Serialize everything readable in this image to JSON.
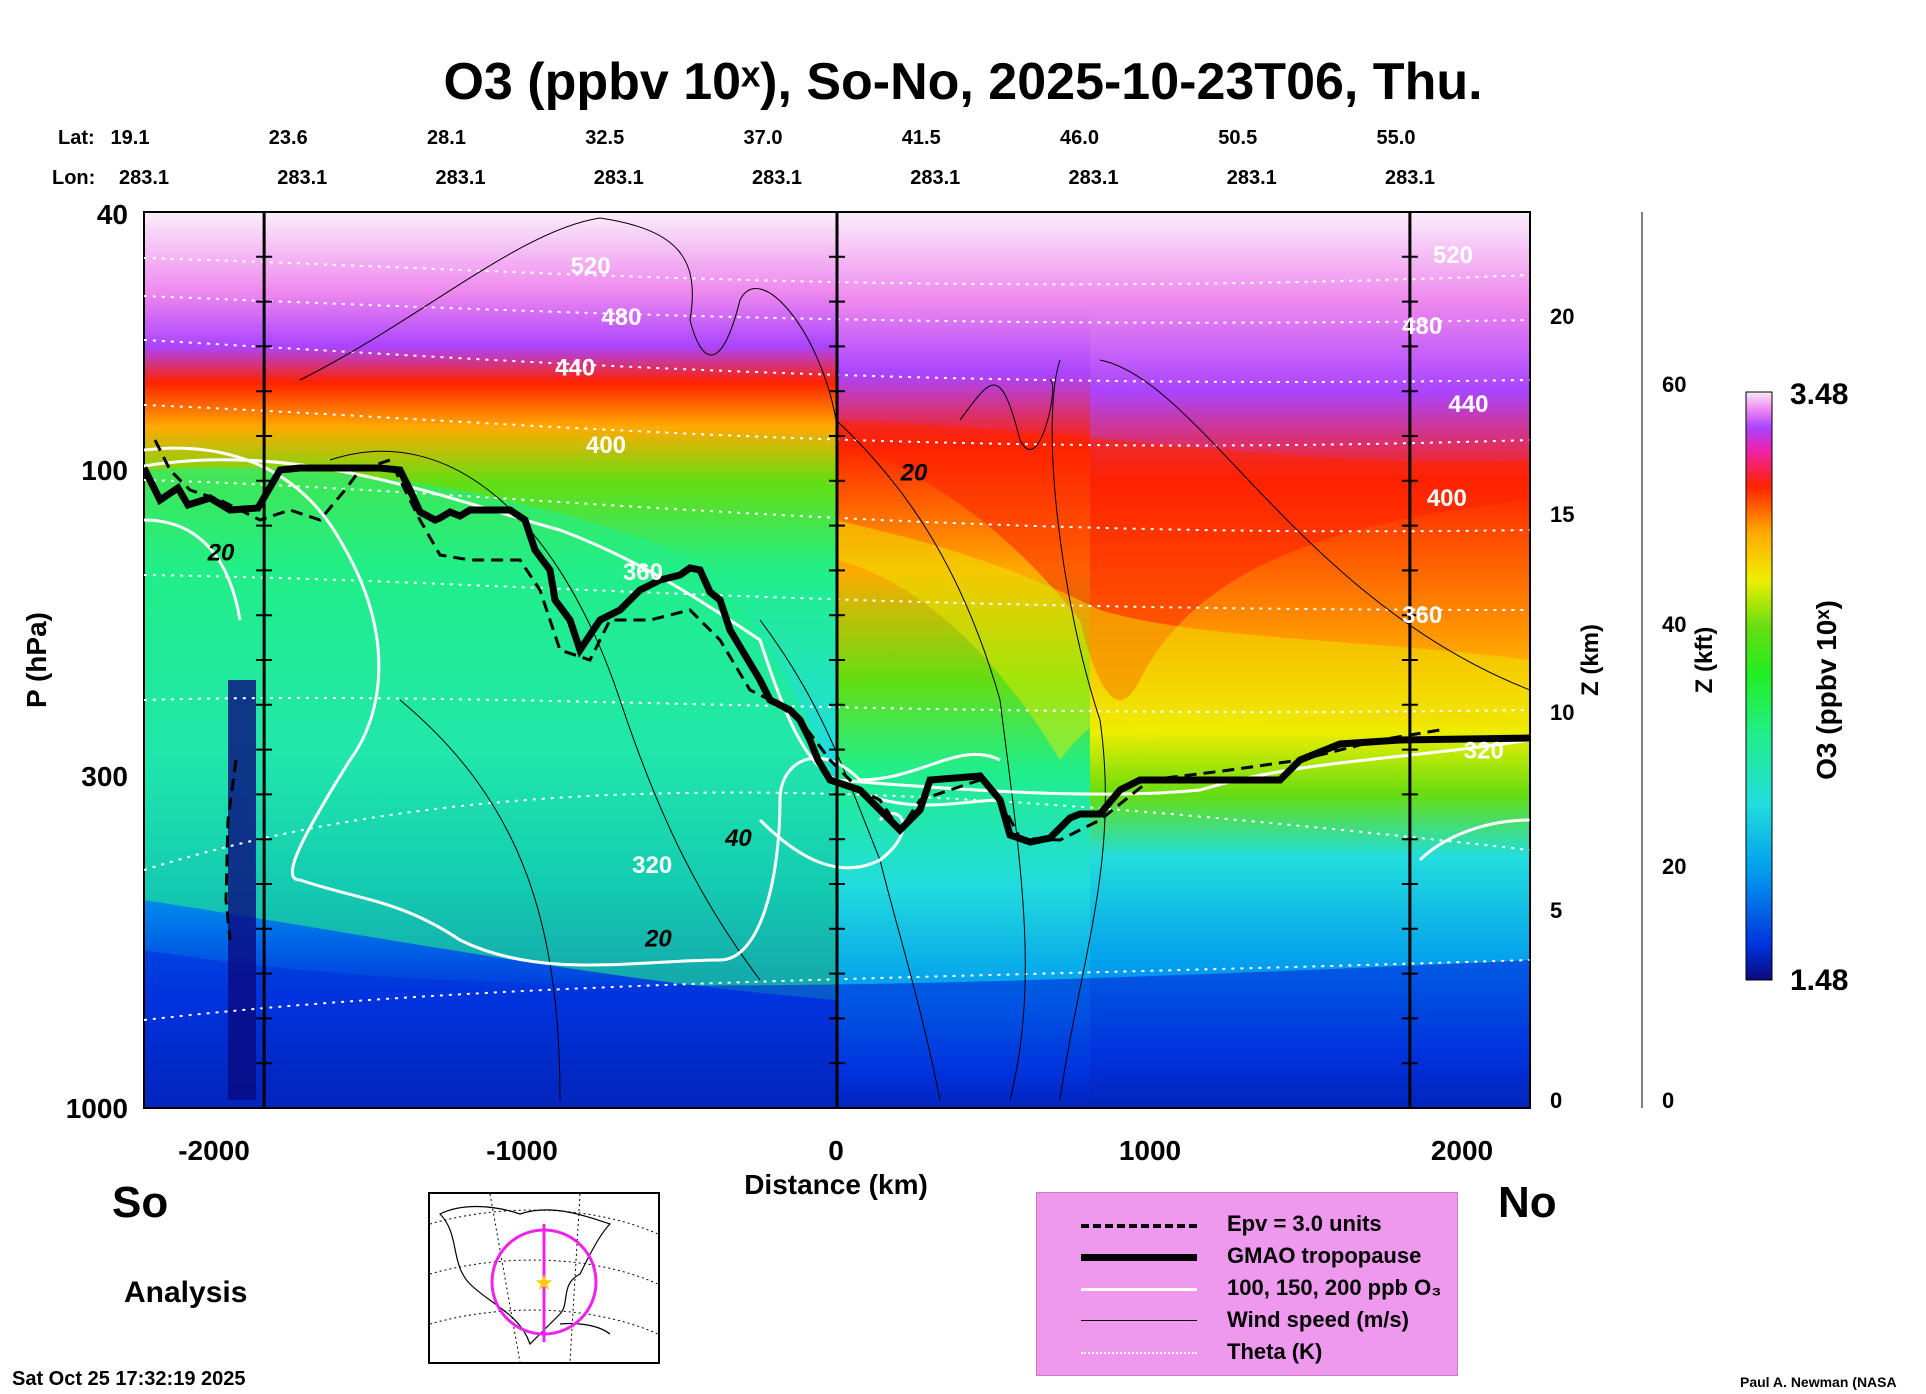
{
  "title": "O3 (ppbv 10ˣ), So-No, 2025-10-23T06, Thu.",
  "header": {
    "lat_label": "Lat:",
    "lon_label": "Lon:",
    "lat_values": [
      "19.1",
      "23.6",
      "28.1",
      "32.5",
      "37.0",
      "41.5",
      "46.0",
      "50.5",
      "55.0"
    ],
    "lon_values": [
      "283.1",
      "283.1",
      "283.1",
      "283.1",
      "283.1",
      "283.1",
      "283.1",
      "283.1",
      "283.1"
    ]
  },
  "axes": {
    "ylabel": "P (hPa)",
    "xlabel": "Distance (km)",
    "y_ticks": [
      "40",
      "100",
      "300",
      "1000"
    ],
    "x_ticks": [
      "-2000",
      "-1000",
      "0",
      "1000",
      "2000"
    ],
    "z_km_label": "Z (km)",
    "z_km_ticks": [
      "0",
      "5",
      "10",
      "15",
      "20"
    ],
    "z_kft_label": "Z (kft)",
    "z_kft_ticks": [
      "0",
      "20",
      "40",
      "60"
    ],
    "colorbar_label": "O3 (ppbv 10ˣ)",
    "colorbar_max": "3.48",
    "colorbar_min": "1.48"
  },
  "labels": {
    "south": "So",
    "north": "No",
    "analysis": "Analysis",
    "timestamp": "Sat Oct 25 17:32:19 2025",
    "credit": "Paul A. Newman (NASA"
  },
  "legend": {
    "items": [
      {
        "label": "Epv = 3.0 units"
      },
      {
        "label": "GMAO tropopause"
      },
      {
        "label": "100, 150, 200 ppb O₃"
      },
      {
        "label": "Wind speed (m/s)"
      },
      {
        "label": "Theta (K)"
      }
    ]
  },
  "chart_data": {
    "type": "heatmap",
    "title": "O3 (ppbv 10ˣ), So-No, 2025-10-23T06, Thu.",
    "xlabel": "Distance (km)",
    "ylabel": "P (hPa)",
    "xlim": [
      -2250,
      2250
    ],
    "ylim": [
      1000,
      40
    ],
    "y_scale": "log",
    "colorbar": {
      "min": 1.48,
      "max": 3.48,
      "label": "O3 (ppbv 10ˣ)"
    },
    "colors": [
      "#0a0a80",
      "#0033dd",
      "#0099ee",
      "#22dddd",
      "#22ee88",
      "#22ee22",
      "#66dd11",
      "#eeee00",
      "#ffaa00",
      "#ff2200",
      "#ee22aa",
      "#aa44ff",
      "#ee88ee",
      "#f8e8f8"
    ],
    "theta_labels": [
      {
        "x": -800,
        "p": 50,
        "value": "520"
      },
      {
        "x": -700,
        "p": 60,
        "value": "480"
      },
      {
        "x": -850,
        "p": 72,
        "value": "440"
      },
      {
        "x": -750,
        "p": 95,
        "value": "400"
      },
      {
        "x": -630,
        "p": 150,
        "value": "360"
      },
      {
        "x": -600,
        "p": 430,
        "value": "320"
      },
      {
        "x": 2000,
        "p": 48,
        "value": "520"
      },
      {
        "x": 1900,
        "p": 62,
        "value": "480"
      },
      {
        "x": 2050,
        "p": 82,
        "value": "440"
      },
      {
        "x": 1980,
        "p": 115,
        "value": "400"
      },
      {
        "x": 1900,
        "p": 175,
        "value": "360"
      },
      {
        "x": 2100,
        "p": 285,
        "value": "320"
      }
    ],
    "wind_labels": [
      {
        "x": -2000,
        "p": 140,
        "value": "20"
      },
      {
        "x": -320,
        "p": 390,
        "value": "40"
      },
      {
        "x": -580,
        "p": 560,
        "value": "20"
      },
      {
        "x": 250,
        "p": 105,
        "value": "20"
      }
    ],
    "tropopause_lat_lines_km": [
      -1860,
      0,
      1860
    ]
  },
  "colors": {
    "legend_bg": "#ee99ee",
    "map_ring": "#ee22ee",
    "marker": "#ffcc00"
  }
}
